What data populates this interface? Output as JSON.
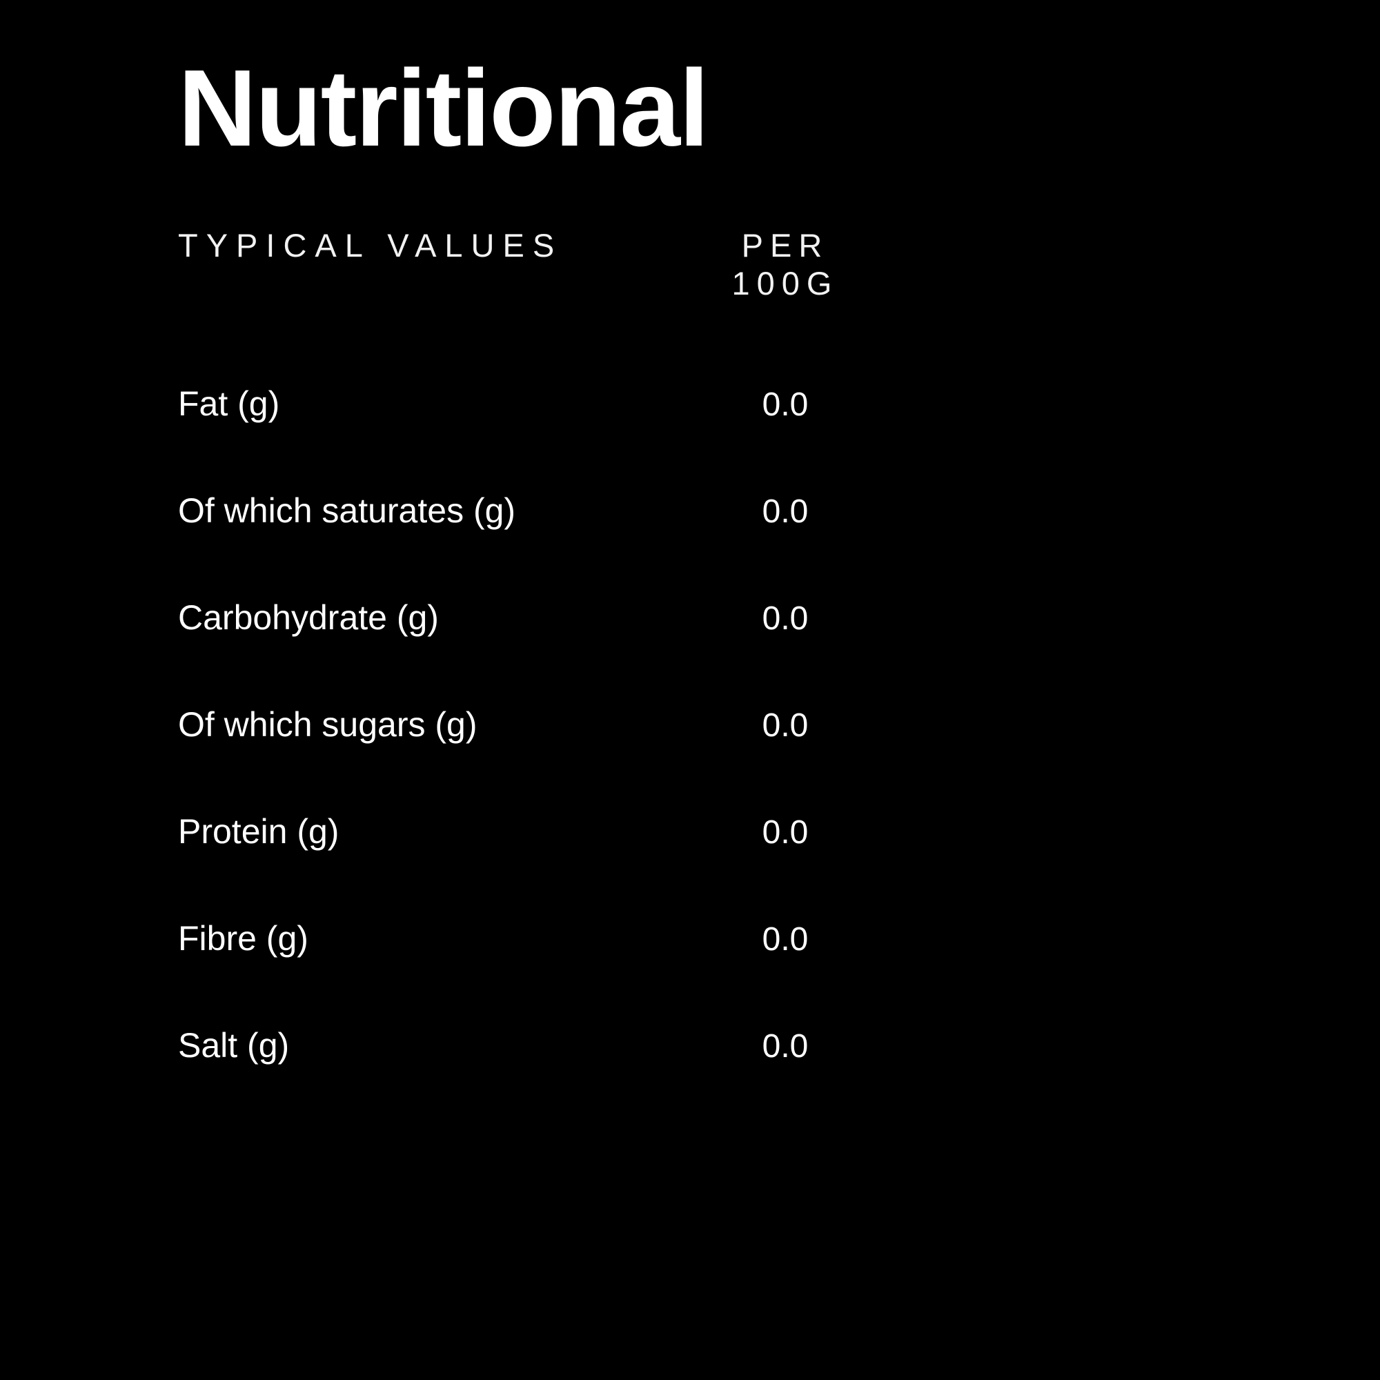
{
  "label": {
    "title": "Nutritional",
    "columns": {
      "left": "TYPICAL VALUES",
      "right": "PER 100G"
    },
    "rows": [
      {
        "name": "Fat (g)",
        "value": "0.0"
      },
      {
        "name": "Of which saturates (g)",
        "value": "0.0"
      },
      {
        "name": "Carbohydrate (g)",
        "value": "0.0"
      },
      {
        "name": "Of which sugars (g)",
        "value": "0.0"
      },
      {
        "name": "Protein (g)",
        "value": "0.0"
      },
      {
        "name": "Fibre (g)",
        "value": "0.0"
      },
      {
        "name": "Salt (g)",
        "value": "0.0"
      }
    ],
    "colors": {
      "background": "#000000",
      "text": "#ffffff"
    }
  }
}
